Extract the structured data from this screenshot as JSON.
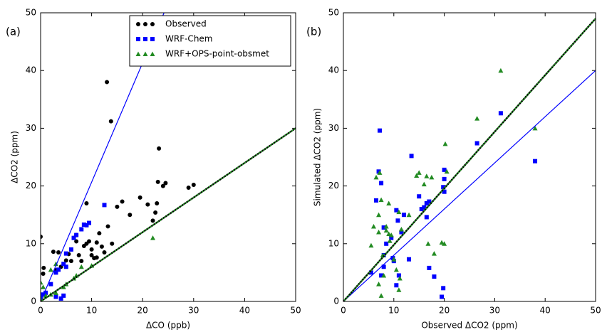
{
  "chart_data": [
    {
      "type": "scatter",
      "panel_label": "(a)",
      "x_label": "ΔCO (ppb)",
      "y_label": "ΔCO2 (ppm)",
      "xlim": [
        0,
        50
      ],
      "ylim": [
        0,
        50
      ],
      "xticks": [
        0,
        10,
        20,
        30,
        40,
        50
      ],
      "yticks": [
        0,
        10,
        20,
        30,
        40,
        50
      ],
      "legend": "upper-right",
      "series": [
        {
          "name": "Observed",
          "color": "#000000",
          "marker": "circle",
          "x": [
            0,
            0.5,
            0.6,
            2.5,
            3,
            4,
            5,
            5.5,
            6,
            6.5,
            7,
            7,
            7.5,
            8,
            8.5,
            9,
            9.5,
            10,
            10,
            10.5,
            11,
            11,
            11.5,
            12,
            12.5,
            13,
            13.2,
            13.8,
            14,
            15,
            16,
            17.5,
            19.5,
            21,
            22.5,
            22.8,
            23,
            23.2,
            24,
            24.5,
            29,
            30,
            22,
            6,
            3.5,
            9
          ],
          "values": [
            11.2,
            4.8,
            5.8,
            8.6,
            5.4,
            6,
            7.1,
            8.2,
            9,
            11,
            10.4,
            11.5,
            8,
            7,
            9.6,
            17,
            10.4,
            9,
            8,
            7.5,
            10.2,
            7.6,
            11.8,
            9.5,
            8.5,
            38,
            13,
            31.2,
            10,
            16.4,
            17.3,
            15,
            18,
            16.8,
            15.4,
            17,
            20.7,
            26.5,
            20,
            20.5,
            19.7,
            20.2,
            14,
            7,
            8.5,
            10
          ]
        },
        {
          "name": "WRF-Chem",
          "color": "#0000ff",
          "marker": "square",
          "x": [
            0,
            0.5,
            1,
            2,
            3,
            3.5,
            4,
            4.5,
            4.5,
            5,
            6,
            6.5,
            7,
            8,
            8.5,
            9,
            9.5,
            12.5,
            3,
            5
          ],
          "values": [
            0.5,
            1.2,
            1.5,
            3,
            0.8,
            5.5,
            0.5,
            1,
            6.5,
            8.3,
            9,
            11,
            11.5,
            12.5,
            13.3,
            13.2,
            13.6,
            16.7,
            5,
            6
          ]
        },
        {
          "name": "WRF+OPS-point-obsmet",
          "color": "#228b22",
          "marker": "triangle",
          "x": [
            0,
            0.5,
            1,
            2,
            3,
            3,
            4.5,
            5,
            6.5,
            7,
            8,
            10,
            22,
            0,
            2
          ],
          "values": [
            3.3,
            2.5,
            1,
            1.2,
            1.5,
            6.5,
            2.5,
            3,
            4,
            4.5,
            6,
            6.2,
            11,
            0.5,
            5.5
          ]
        }
      ],
      "lines": [
        {
          "color": "#0000ff",
          "style": "solid",
          "x": [
            0,
            24.2
          ],
          "y": [
            0,
            50
          ]
        },
        {
          "color": "#000000",
          "style": "dotted",
          "x": [
            0,
            50
          ],
          "y": [
            0,
            30
          ]
        },
        {
          "color": "#228b22",
          "style": "dotted",
          "x": [
            0,
            50
          ],
          "y": [
            0,
            30
          ]
        }
      ]
    },
    {
      "type": "scatter",
      "panel_label": "(b)",
      "x_label": "Observed ΔCO2 (ppm)",
      "y_label": "Simulated ΔCO2 (ppm)",
      "xlim": [
        0,
        50
      ],
      "ylim": [
        0,
        50
      ],
      "xticks": [
        0,
        10,
        20,
        30,
        40,
        50
      ],
      "yticks": [
        0,
        10,
        20,
        30,
        40,
        50
      ],
      "series": [
        {
          "color": "#0000ff",
          "marker": "square",
          "x": [
            5.5,
            6.5,
            7,
            7.2,
            7.5,
            7.5,
            8,
            8,
            8.5,
            9.5,
            9.8,
            10,
            10.5,
            10.5,
            10.8,
            11,
            11.5,
            12,
            13,
            13.5,
            15,
            15.5,
            16,
            16.5,
            16.5,
            17,
            17,
            18,
            19.5,
            19.8,
            19.8,
            20,
            20,
            20,
            26.5,
            31.2,
            38,
            8
          ],
          "values": [
            5,
            17.5,
            22.5,
            29.6,
            20.5,
            4.5,
            12.8,
            8,
            10,
            11,
            7.5,
            7,
            2.8,
            15.8,
            14,
            4.5,
            12,
            15,
            7.3,
            25.2,
            18.2,
            16,
            16.3,
            17,
            14.6,
            5.8,
            17.3,
            4.3,
            0.8,
            2.3,
            19.8,
            19,
            21.2,
            22.8,
            27.4,
            32.6,
            24.3,
            6
          ]
        },
        {
          "color": "#228b22",
          "marker": "triangle",
          "x": [
            5.5,
            6.5,
            7,
            7,
            7.2,
            7.5,
            7.5,
            7.8,
            8,
            8.5,
            8.5,
            9,
            9.2,
            9.5,
            10,
            10.5,
            11,
            11,
            11.2,
            11.5,
            13,
            14.5,
            15,
            16,
            16.5,
            16.8,
            17.5,
            18,
            19.5,
            20,
            20.2,
            20.5,
            26.5,
            31.2,
            38,
            6,
            9,
            7
          ],
          "values": [
            9.7,
            21.5,
            15,
            12,
            22.3,
            17.6,
            1,
            8,
            4.5,
            12.3,
            13,
            11.7,
            10.5,
            11.5,
            7.3,
            5.5,
            15.5,
            2,
            4,
            12.5,
            15,
            21.8,
            22.3,
            20.3,
            21.7,
            10,
            21.5,
            8.3,
            10.2,
            10,
            27.3,
            22.5,
            31.7,
            40,
            30,
            13,
            17,
            3
          ]
        }
      ],
      "lines": [
        {
          "color": "#0000ff",
          "style": "solid",
          "x": [
            0,
            50
          ],
          "y": [
            0,
            40
          ]
        },
        {
          "color": "#000000",
          "style": "dotted",
          "x": [
            0,
            50
          ],
          "y": [
            0,
            49
          ]
        },
        {
          "color": "#228b22",
          "style": "dotted",
          "x": [
            0,
            50
          ],
          "y": [
            0,
            49
          ]
        }
      ]
    }
  ]
}
